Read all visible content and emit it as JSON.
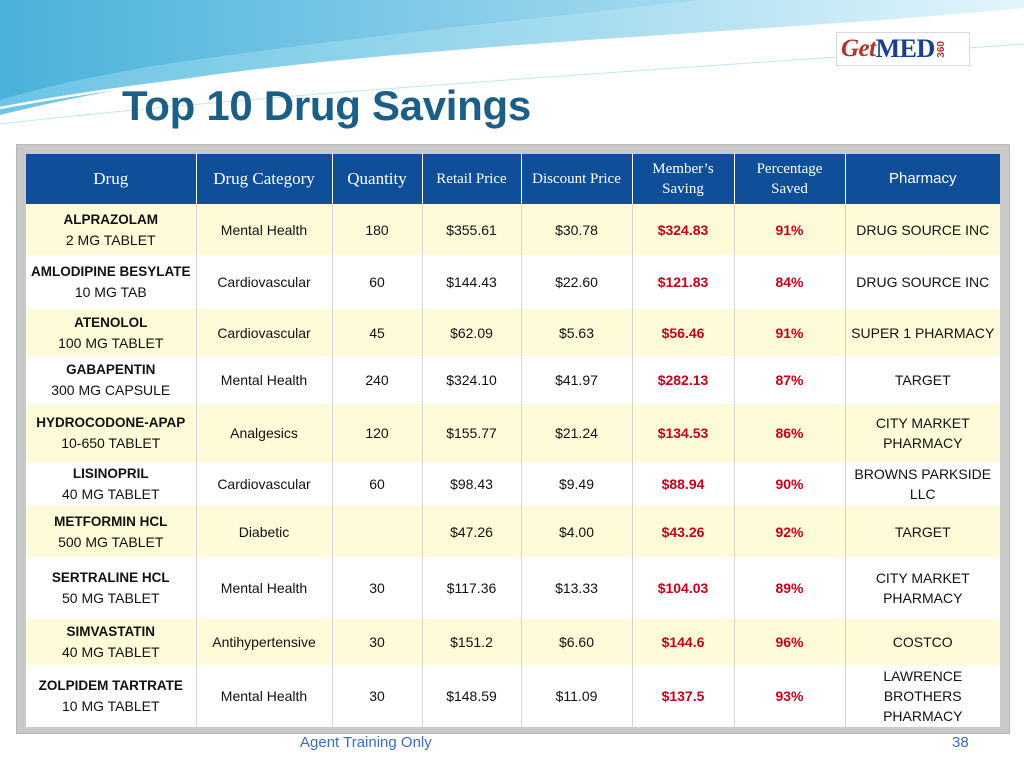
{
  "title": "Top 10 Drug Savings",
  "logo": {
    "part1": "Get",
    "part2": "MED",
    "part3": "360"
  },
  "table": {
    "headers": [
      "Drug",
      "Drug Category",
      "Quantity",
      "Retail Price",
      "Discount Price",
      "Member’s Saving",
      "Percentage Saved",
      "Pharmacy"
    ],
    "rows": [
      {
        "name": "ALPRAZOLAM",
        "dose": "2 MG TABLET",
        "category": "Mental Health",
        "quantity": "180",
        "retail": "$355.61",
        "discount": "$30.78",
        "saving": "$324.83",
        "percent": "91%",
        "pharmacy": "DRUG SOURCE INC"
      },
      {
        "name": "AMLODIPINE BESYLATE",
        "dose": "10 MG TAB",
        "category": "Cardiovascular",
        "quantity": "60",
        "retail": "$144.43",
        "discount": "$22.60",
        "saving": "$121.83",
        "percent": "84%",
        "pharmacy": "DRUG SOURCE INC"
      },
      {
        "name": "ATENOLOL",
        "dose": "100 MG TABLET",
        "category": "Cardiovascular",
        "quantity": "45",
        "retail": "$62.09",
        "discount": "$5.63",
        "saving": "$56.46",
        "percent": "91%",
        "pharmacy": "SUPER 1 PHARMACY"
      },
      {
        "name": "GABAPENTIN",
        "dose": "300 MG CAPSULE",
        "category": "Mental Health",
        "quantity": "240",
        "retail": "$324.10",
        "discount": "$41.97",
        "saving": "$282.13",
        "percent": "87%",
        "pharmacy": "TARGET"
      },
      {
        "name": "HYDROCODONE-APAP",
        "dose": "10-650 TABLET",
        "category": "Analgesics",
        "quantity": "120",
        "retail": "$155.77",
        "discount": "$21.24",
        "saving": "$134.53",
        "percent": "86%",
        "pharmacy": "CITY MARKET PHARMACY"
      },
      {
        "name": "LISINOPRIL",
        "dose": "40 MG TABLET",
        "category": "Cardiovascular",
        "quantity": "60",
        "retail": "$98.43",
        "discount": "$9.49",
        "saving": "$88.94",
        "percent": "90%",
        "pharmacy": "BROWNS PARKSIDE LLC"
      },
      {
        "name": "METFORMIN HCL",
        "dose": "500 MG TABLET",
        "category": "Diabetic",
        "quantity": "",
        "retail": "$47.26",
        "discount": "$4.00",
        "saving": "$43.26",
        "percent": "92%",
        "pharmacy": "TARGET"
      },
      {
        "name": "SERTRALINE HCL",
        "dose": "50 MG TABLET",
        "category": "Mental Health",
        "quantity": "30",
        "retail": "$117.36",
        "discount": "$13.33",
        "saving": "$104.03",
        "percent": "89%",
        "pharmacy": "CITY MARKET PHARMACY"
      },
      {
        "name": "SIMVASTATIN",
        "dose": "40 MG TABLET",
        "category": "Antihypertensive",
        "quantity": "30",
        "retail": "$151.2",
        "discount": "$6.60",
        "saving": "$144.6",
        "percent": "96%",
        "pharmacy": "COSTCO"
      },
      {
        "name": "ZOLPIDEM TARTRATE",
        "dose": "10 MG TABLET",
        "category": "Mental Health",
        "quantity": "30",
        "retail": "$148.59",
        "discount": "$11.09",
        "saving": "$137.5",
        "percent": "93%",
        "pharmacy": "LAWRENCE BROTHERS PHARMACY"
      }
    ]
  },
  "footer": {
    "text": "Agent Training Only",
    "page": "38"
  },
  "colors": {
    "header_bg": "#0f4f99",
    "title": "#1b5f86",
    "saving_red": "#c4001a",
    "row_yellow": "#fdfbd8",
    "footer_blue": "#3a6fb8"
  }
}
